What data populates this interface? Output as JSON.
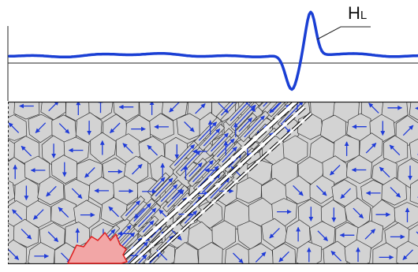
{
  "signal_label": {
    "main": "H",
    "subscript": "L"
  },
  "colors": {
    "signal": "#1a3fd4",
    "grain_fill": "#d3d3d3",
    "grain_stroke": "#333333",
    "arrow": "#1f3bd8",
    "flaw_fill": "#f2a6a6",
    "flaw_stroke": "#e02020",
    "crack": "#ffffff"
  }
}
